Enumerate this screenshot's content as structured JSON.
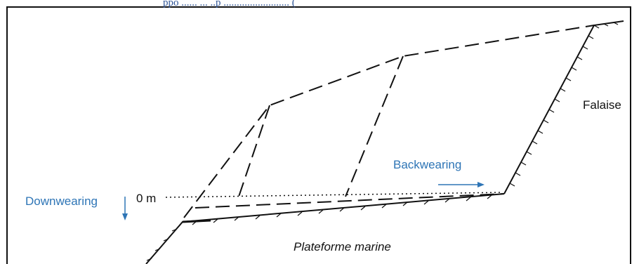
{
  "caption_fragment": "ppo                    ...... ... ..p                    ......................... (",
  "labels": {
    "cliff": "Falaise",
    "backwearing": "Backwearing",
    "downwearing": "Downwearing",
    "zero_level": "0 m",
    "platform": "Plateforme marine"
  },
  "colors": {
    "blue_label": "#2e75b6",
    "caption_blue": "#2f5597",
    "line": "#111111"
  }
}
